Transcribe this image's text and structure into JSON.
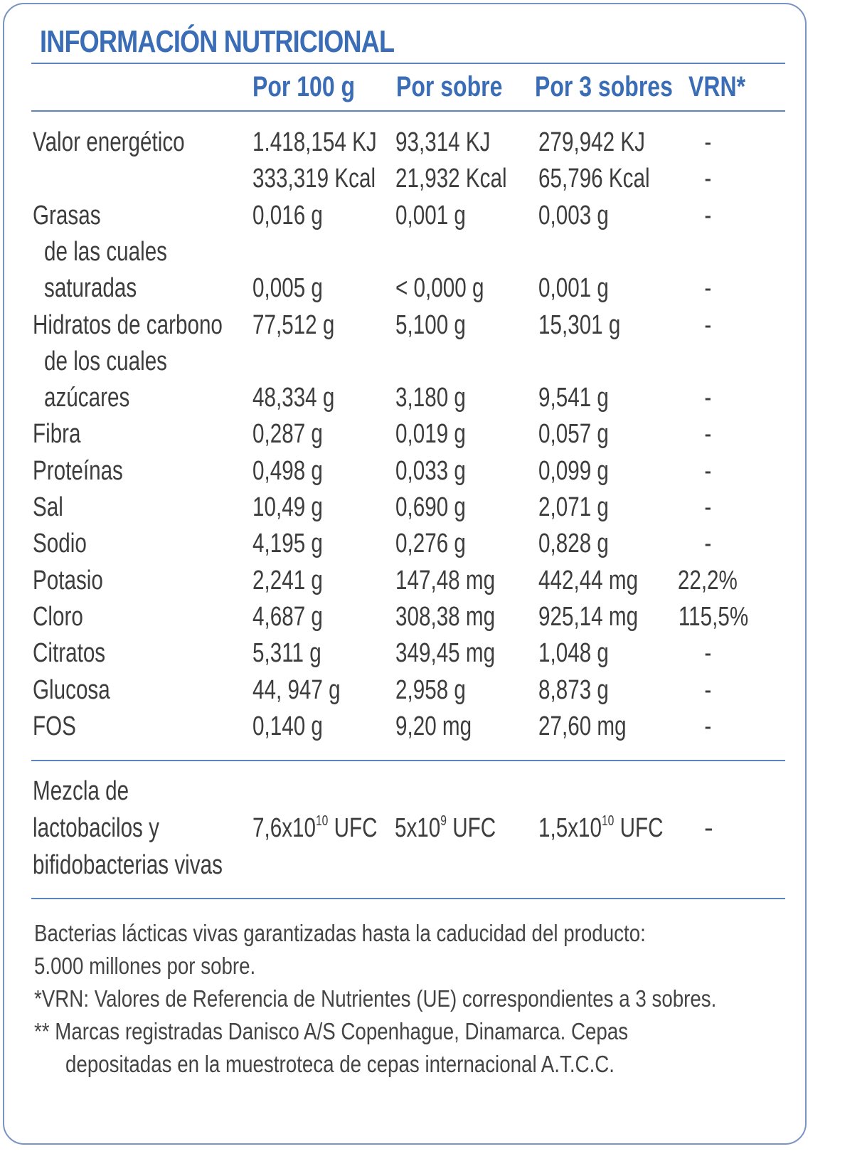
{
  "title": "INFORMACIÓN NUTRICIONAL",
  "headers": [
    "Por 100 g",
    "Por sobre",
    "Por 3 sobres",
    "VRN*"
  ],
  "rows": [
    {
      "label": "Valor energético",
      "c1": "1.418,154 KJ",
      "c2": "93,314 KJ",
      "c3": "279,942 KJ",
      "vrn": "-"
    },
    {
      "label": "",
      "c1": "333,319 Kcal",
      "c2": "21,932 Kcal",
      "c3": "65,796 Kcal",
      "vrn": "-"
    },
    {
      "label": "Grasas",
      "c1": "0,016 g",
      "c2": "0,001 g",
      "c3": "0,003 g",
      "vrn": "-"
    },
    {
      "label": "de las cuales",
      "c1": "",
      "c2": "",
      "c3": "",
      "vrn": ""
    },
    {
      "label": "saturadas",
      "c1": "0,005 g",
      "c2": "< 0,000 g",
      "c3": "0,001 g",
      "vrn": "-"
    },
    {
      "label": "Hidratos de carbono",
      "c1": "77,512 g",
      "c2": "5,100 g",
      "c3": "15,301 g",
      "vrn": "-"
    },
    {
      "label": "de los cuales",
      "c1": "",
      "c2": "",
      "c3": "",
      "vrn": ""
    },
    {
      "label": "azúcares",
      "c1": "48,334 g",
      "c2": "3,180 g",
      "c3": "9,541 g",
      "vrn": "-"
    },
    {
      "label": "Fibra",
      "c1": "0,287 g",
      "c2": "0,019 g",
      "c3": "0,057 g",
      "vrn": "-"
    },
    {
      "label": "Proteínas",
      "c1": "0,498 g",
      "c2": "0,033 g",
      "c3": "0,099 g",
      "vrn": "-"
    },
    {
      "label": "Sal",
      "c1": "10,49 g",
      "c2": "0,690 g",
      "c3": "2,071 g",
      "vrn": "-"
    },
    {
      "label": "Sodio",
      "c1": "4,195 g",
      "c2": "0,276 g",
      "c3": "0,828 g",
      "vrn": "-"
    },
    {
      "label": "Potasio",
      "c1": "2,241 g",
      "c2": "147,48 mg",
      "c3": "442,44 mg",
      "vrn": "22,2%"
    },
    {
      "label": "Cloro",
      "c1": "4,687 g",
      "c2": "308,38 mg",
      "c3": "925,14 mg",
      "vrn": "115,5%"
    },
    {
      "label": "Citratos",
      "c1": "5,311 g",
      "c2": "349,45 mg",
      "c3": "1,048 g",
      "vrn": "-"
    },
    {
      "label": "Glucosa",
      "c1": "44, 947 g",
      "c2": "2,958 g",
      "c3": "8,873 g",
      "vrn": "-"
    },
    {
      "label": "FOS",
      "c1": "0,140 g",
      "c2": "9,20 mg",
      "c3": "27,60 mg",
      "vrn": "-"
    }
  ],
  "probiotics": {
    "label_lines": [
      "Mezcla de",
      "lactobacilos y",
      "bifidobacterias vivas"
    ],
    "c1_base": "7,6x10",
    "c1_exp": "10",
    "c1_unit": " UFC",
    "c2_base": "5x10",
    "c2_exp": "9",
    "c2_unit": " UFC",
    "c3_base": "1,5x10",
    "c3_exp": "10",
    "c3_unit": " UFC",
    "vrn": "-"
  },
  "notes": [
    "Bacterias lácticas vivas garantizadas hasta la caducidad del producto:",
    "5.000 millones por sobre.",
    "*VRN: Valores de Referencia de Nutrientes (UE) correspondientes a 3 sobres.",
    "** Marcas registradas Danisco A/S Copenhague, Dinamarca. Cepas",
    "depositadas en la muestroteca de cepas internacional A.T.C.C."
  ]
}
